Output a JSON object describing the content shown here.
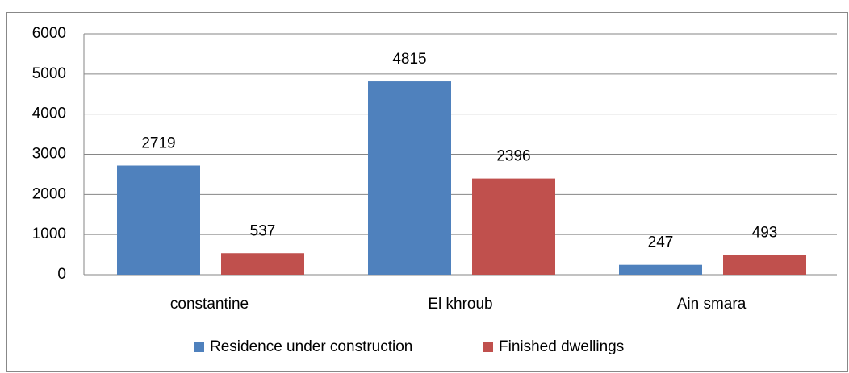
{
  "chart_data": {
    "type": "bar",
    "categories": [
      "constantine",
      "El khroub",
      "Ain smara"
    ],
    "series": [
      {
        "name": "Residence under construction",
        "color": "#4f81bd",
        "values": [
          2719,
          4815,
          247
        ]
      },
      {
        "name": "Finished dwellings",
        "color": "#c0504d",
        "values": [
          537,
          2396,
          493
        ]
      }
    ],
    "ylim": [
      0,
      6000
    ],
    "yticks": [
      0,
      1000,
      2000,
      3000,
      4000,
      5000,
      6000
    ],
    "grid": true,
    "legend": "bottom"
  }
}
